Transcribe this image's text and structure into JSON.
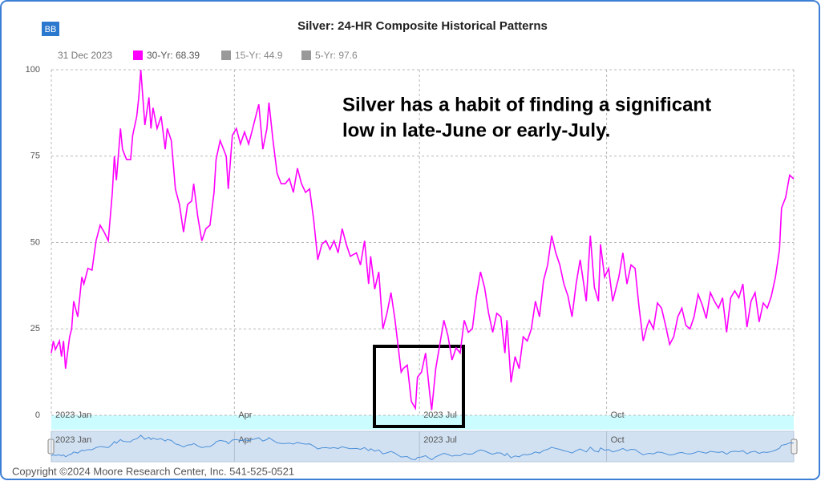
{
  "chart_data": {
    "type": "line",
    "title": "Silver: 24-HR Composite Historical Patterns",
    "button": "BB",
    "legend_date": "31 Dec 2023",
    "annotation": [
      "Silver has a habit of finding a significant",
      "low in late-June or early-July."
    ],
    "footer": "Copyright ©2024 Moore Research Center, Inc. 541-525-0521",
    "xlim": [
      0,
      365
    ],
    "xticks": [
      {
        "value": 0,
        "label": "2023 Jan"
      },
      {
        "value": 90,
        "label": "Apr"
      },
      {
        "value": 181,
        "label": "2023 Jul"
      },
      {
        "value": 273,
        "label": "Oct"
      }
    ],
    "ylim": [
      0,
      100
    ],
    "yticks": [
      0,
      25,
      50,
      75,
      100
    ],
    "grid": true,
    "x": [
      0,
      1,
      2,
      4,
      5,
      6,
      7,
      9,
      10,
      11,
      13,
      15,
      16,
      18,
      20,
      22,
      24,
      26,
      28,
      30,
      31,
      32,
      34,
      35,
      37,
      39,
      40,
      42,
      43,
      44,
      46,
      48,
      49,
      50,
      52,
      54,
      56,
      57,
      59,
      61,
      63,
      65,
      67,
      69,
      70,
      72,
      74,
      76,
      78,
      80,
      81,
      83,
      86,
      87,
      89,
      91,
      93,
      95,
      97,
      99,
      102,
      104,
      106,
      107,
      109,
      111,
      113,
      115,
      117,
      119,
      121,
      123,
      125,
      127,
      129,
      131,
      133,
      135,
      137,
      139,
      141,
      143,
      145,
      147,
      150,
      152,
      154,
      156,
      157,
      159,
      161,
      163,
      165,
      167,
      169,
      172,
      173,
      175,
      177,
      179,
      180,
      182,
      184,
      186,
      187,
      189,
      191,
      193,
      195,
      197,
      199,
      201,
      203,
      205,
      207,
      209,
      211,
      213,
      215,
      217,
      219,
      221,
      223,
      224,
      226,
      228,
      230,
      232,
      234,
      236,
      238,
      240,
      242,
      244,
      246,
      248,
      250,
      252,
      254,
      256,
      258,
      260,
      263,
      265,
      267,
      269,
      270,
      272,
      274,
      276,
      279,
      281,
      283,
      285,
      287,
      289,
      291,
      293,
      294,
      296,
      298,
      300,
      302,
      304,
      306,
      308,
      310,
      312,
      314,
      316,
      318,
      320,
      322,
      324,
      326,
      328,
      330,
      332,
      334,
      336,
      338,
      340,
      342,
      344,
      346,
      348,
      350,
      352,
      354,
      356,
      358,
      359,
      361,
      363,
      365
    ],
    "series": [
      {
        "name": "30-Yr: 68.39",
        "color": "#ff00ff",
        "values": [
          18,
          21.5,
          19,
          21.5,
          17,
          21.5,
          13.5,
          22.7,
          25,
          33,
          28.5,
          40,
          38,
          42.5,
          42,
          50.5,
          55,
          53,
          50.5,
          64.5,
          75,
          68,
          83,
          77,
          74,
          74,
          81,
          86.5,
          92,
          100,
          84,
          92,
          83,
          89,
          83,
          86.5,
          77,
          83,
          79.5,
          65.5,
          61,
          53,
          61,
          62,
          67,
          57.5,
          50.5,
          54,
          55,
          64.5,
          74,
          79.5,
          75,
          65.5,
          81,
          83,
          78.5,
          82,
          78.5,
          83,
          90,
          77,
          83,
          90.5,
          79.5,
          70,
          67,
          67,
          68.5,
          64.5,
          71.5,
          67,
          64.5,
          65.5,
          56.5,
          45,
          49.5,
          50.5,
          48,
          50.5,
          47,
          54,
          49.5,
          46,
          47,
          43.5,
          50.5,
          38,
          46,
          36.5,
          41.5,
          25,
          29.5,
          35.5,
          27.5,
          12.5,
          13.5,
          14.5,
          4,
          2,
          11,
          12.5,
          18,
          6.5,
          1.5,
          13.5,
          20.5,
          27.5,
          23,
          16,
          19.5,
          18,
          27.5,
          24,
          25,
          34.5,
          41.5,
          37,
          29.5,
          24,
          29.5,
          28.5,
          18,
          27.5,
          9.5,
          17,
          13.5,
          22.7,
          21.5,
          25,
          33,
          28.5,
          39,
          43.5,
          52,
          47,
          43.5,
          38,
          34.5,
          28.5,
          38,
          45,
          33,
          52,
          37,
          33,
          49.5,
          40,
          42.5,
          33,
          40,
          47,
          38,
          43.5,
          42.5,
          31,
          21.5,
          26,
          27.5,
          25,
          32.5,
          31,
          26,
          20.5,
          22.7,
          28.5,
          31,
          26,
          25,
          28.5,
          35,
          32,
          28,
          35.5,
          33,
          31,
          34,
          24,
          34,
          36,
          34,
          38,
          25.5,
          33,
          35.5,
          27,
          32.5,
          31,
          34.5,
          40,
          48,
          60,
          63,
          69.5,
          68.39
        ]
      }
    ],
    "inactive_legend": [
      {
        "label": "15-Yr: 44.9",
        "color": "#999999"
      },
      {
        "label": "5-Yr: 97.6",
        "color": "#999999"
      }
    ]
  }
}
